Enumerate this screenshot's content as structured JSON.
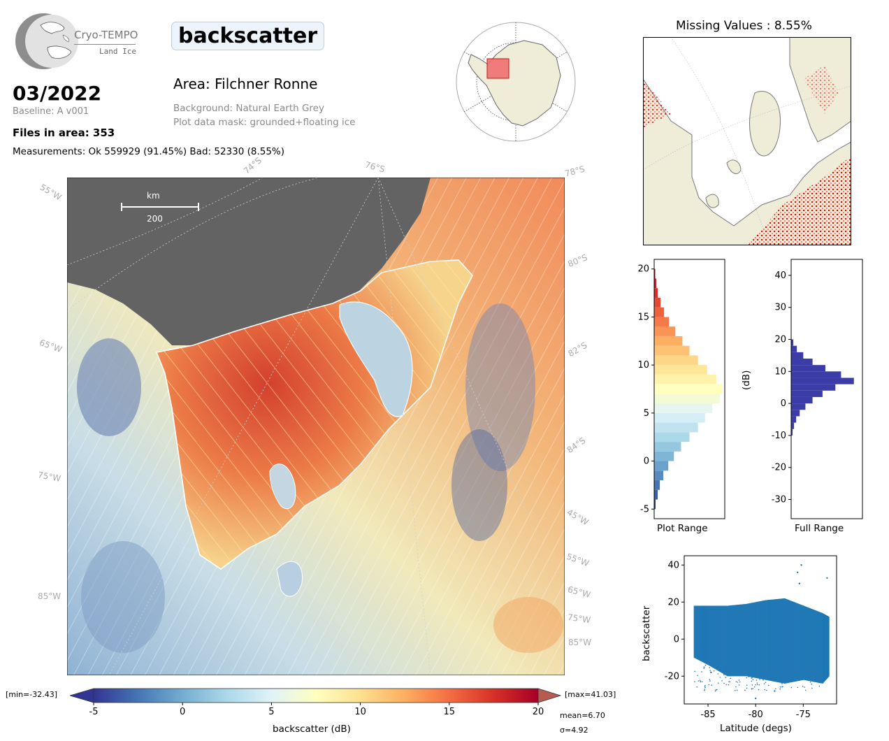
{
  "header": {
    "logo_line1": "Cryo-TEMPO",
    "logo_line2": "Land Ice",
    "parameter": "backscatter",
    "period": "03/2022",
    "baseline": "Baseline: A v001",
    "files": "Files in area: 353",
    "measurements": "Measurements: Ok 559929 (91.45%) Bad: 52330 (8.55%)",
    "area": "Area: Filchner Ronne",
    "background": "Background: Natural Earth Grey",
    "mask": "Plot data mask: grounded+floating ice"
  },
  "main_map": {
    "scale_unit": "km",
    "scale_value": "200",
    "lat_labels": [
      "74°S",
      "76°S",
      "78°S",
      "80°S",
      "82°S",
      "84°S"
    ],
    "lon_labels_left": [
      "55°W",
      "65°W",
      "75°W",
      "85°W"
    ],
    "lon_labels_right": [
      "45°W",
      "55°W",
      "65°W",
      "75°W",
      "85°W"
    ]
  },
  "colorbar": {
    "min_label": "[min=-32.43]",
    "max_label": "[max=41.03]",
    "ticks": [
      "-5",
      "0",
      "5",
      "10",
      "15",
      "20"
    ],
    "label": "backscatter (dB)",
    "mean": "mean=6.70",
    "sigma": "σ=4.92",
    "range": [
      -5,
      20
    ],
    "colors": [
      "#313695",
      "#4575b4",
      "#74add1",
      "#abd9e9",
      "#e0f3f8",
      "#ffffbf",
      "#fee090",
      "#fdae61",
      "#f46d43",
      "#d73027",
      "#a50026"
    ]
  },
  "missing_panel": {
    "title": "Missing Values : 8.55%"
  },
  "chart_data": [
    {
      "type": "bar",
      "orientation": "horizontal",
      "title": "",
      "xlabel": "Plot Range",
      "ylabel": "",
      "ylim": [
        -6,
        21
      ],
      "yticks": [
        "-5",
        "0",
        "5",
        "10",
        "15",
        "20"
      ],
      "bins": [
        {
          "y": -5,
          "v": 0.02
        },
        {
          "y": -4,
          "v": 0.05
        },
        {
          "y": -3,
          "v": 0.08
        },
        {
          "y": -2,
          "v": 0.13
        },
        {
          "y": -1,
          "v": 0.2
        },
        {
          "y": 0,
          "v": 0.28
        },
        {
          "y": 1,
          "v": 0.38
        },
        {
          "y": 2,
          "v": 0.5
        },
        {
          "y": 3,
          "v": 0.62
        },
        {
          "y": 4,
          "v": 0.72
        },
        {
          "y": 5,
          "v": 0.82
        },
        {
          "y": 6,
          "v": 0.93
        },
        {
          "y": 7,
          "v": 0.97
        },
        {
          "y": 8,
          "v": 0.88
        },
        {
          "y": 9,
          "v": 0.75
        },
        {
          "y": 10,
          "v": 0.62
        },
        {
          "y": 11,
          "v": 0.5
        },
        {
          "y": 12,
          "v": 0.4
        },
        {
          "y": 13,
          "v": 0.3
        },
        {
          "y": 14,
          "v": 0.21
        },
        {
          "y": 15,
          "v": 0.14
        },
        {
          "y": 16,
          "v": 0.09
        },
        {
          "y": 17,
          "v": 0.05
        },
        {
          "y": 18,
          "v": 0.03
        },
        {
          "y": 19,
          "v": 0.015
        }
      ]
    },
    {
      "type": "bar",
      "orientation": "horizontal",
      "title": "",
      "xlabel": "Full Range",
      "ylabel": "(dB)",
      "ylim": [
        -36,
        45
      ],
      "yticks": [
        "-30",
        "-20",
        "-10",
        "0",
        "10",
        "20",
        "30",
        "40"
      ],
      "color": "#3c3ca8",
      "bins": [
        {
          "y": -10,
          "v": 0.02
        },
        {
          "y": -8,
          "v": 0.04
        },
        {
          "y": -6,
          "v": 0.07
        },
        {
          "y": -4,
          "v": 0.12
        },
        {
          "y": -2,
          "v": 0.2
        },
        {
          "y": 0,
          "v": 0.3
        },
        {
          "y": 2,
          "v": 0.44
        },
        {
          "y": 4,
          "v": 0.62
        },
        {
          "y": 6,
          "v": 0.88
        },
        {
          "y": 8,
          "v": 0.7
        },
        {
          "y": 10,
          "v": 0.48
        },
        {
          "y": 12,
          "v": 0.3
        },
        {
          "y": 14,
          "v": 0.17
        },
        {
          "y": 16,
          "v": 0.08
        },
        {
          "y": 18,
          "v": 0.03
        }
      ]
    },
    {
      "type": "scatter",
      "title": "",
      "xlabel": "Latitude (degs)",
      "ylabel": "backscatter",
      "xlim": [
        -87.5,
        -71.5
      ],
      "ylim": [
        -35,
        45
      ],
      "xticks": [
        "-85",
        "-80",
        "-75"
      ],
      "yticks": [
        "-20",
        "0",
        "20",
        "40"
      ],
      "color": "#1f77b4",
      "series": [
        {
          "x": -86.5,
          "y_low": -10,
          "y_high": 18
        },
        {
          "x": -85,
          "y_low": -14,
          "y_high": 18
        },
        {
          "x": -83,
          "y_low": -20,
          "y_high": 18
        },
        {
          "x": -81,
          "y_low": -20,
          "y_high": 19
        },
        {
          "x": -79,
          "y_low": -22,
          "y_high": 21
        },
        {
          "x": -77,
          "y_low": -24,
          "y_high": 22
        },
        {
          "x": -75,
          "y_low": -22,
          "y_high": 18
        },
        {
          "x": -73,
          "y_low": -24,
          "y_high": 14
        },
        {
          "x": -72.3,
          "y_low": -20,
          "y_high": 12
        }
      ],
      "outliers": [
        {
          "x": -75.2,
          "y": 40
        },
        {
          "x": -75.6,
          "y": 36
        },
        {
          "x": -75.4,
          "y": 30
        },
        {
          "x": -72.5,
          "y": 33
        },
        {
          "x": -80,
          "y": -32
        },
        {
          "x": -78,
          "y": -28
        }
      ]
    }
  ]
}
